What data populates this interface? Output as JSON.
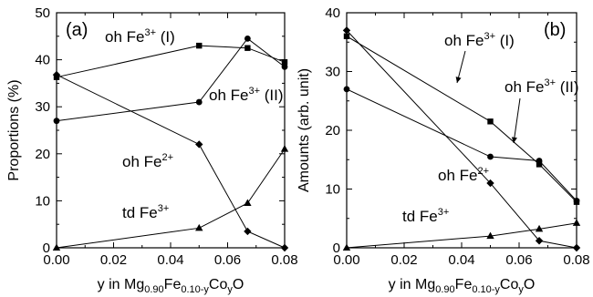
{
  "chart_data": [
    {
      "type": "line",
      "panel_label": "(a)",
      "xlabel": {
        "main": "y in Mg",
        "sub1": "0.90",
        "mid": "Fe",
        "sub2": "0.10-y",
        "mid2": "Co",
        "sub3": "y",
        "end": "O"
      },
      "ylabel": "Proportions  (%)",
      "xlim": [
        0.0,
        0.08
      ],
      "ylim": [
        0,
        50
      ],
      "xticks": [
        "0.00",
        "0.02",
        "0.04",
        "0.06",
        "0.08"
      ],
      "yticks": [
        "0",
        "10",
        "20",
        "30",
        "40",
        "50"
      ],
      "series": [
        {
          "name": "oh Fe3+ (I)",
          "marker": "square",
          "points": [
            [
              0.0,
              36.3
            ],
            [
              0.05,
              43.0
            ],
            [
              0.067,
              42.5
            ],
            [
              0.08,
              39.5
            ]
          ]
        },
        {
          "name": "oh Fe3+ (II)",
          "marker": "circle",
          "points": [
            [
              0.0,
              27.0
            ],
            [
              0.05,
              31.0
            ],
            [
              0.067,
              44.5
            ],
            [
              0.08,
              38.5
            ]
          ]
        },
        {
          "name": "oh Fe2+",
          "marker": "diamond",
          "points": [
            [
              0.0,
              36.8
            ],
            [
              0.05,
              22.0
            ],
            [
              0.067,
              3.5
            ],
            [
              0.08,
              0.0
            ]
          ]
        },
        {
          "name": "td Fe3+",
          "marker": "triangle",
          "points": [
            [
              0.0,
              0.0
            ],
            [
              0.05,
              4.2
            ],
            [
              0.067,
              9.5
            ],
            [
              0.08,
              21.0
            ]
          ]
        }
      ],
      "annotations": [
        {
          "main": "oh Fe",
          "sup": "3+",
          "tail": " (I)"
        },
        {
          "main": "oh Fe",
          "sup": "3+",
          "tail": " (II)"
        },
        {
          "main": "oh Fe",
          "sup": "2+",
          "tail": ""
        },
        {
          "main": "td Fe",
          "sup": "3+",
          "tail": ""
        }
      ]
    },
    {
      "type": "line",
      "panel_label": "(b)",
      "xlabel": {
        "main": "y in Mg",
        "sub1": "0.90",
        "mid": "Fe",
        "sub2": "0.10-y",
        "mid2": "Co",
        "sub3": "y",
        "end": "O"
      },
      "ylabel": "Amounts  (arb. unit)",
      "xlim": [
        0.0,
        0.08
      ],
      "ylim": [
        0,
        40
      ],
      "xticks": [
        "0.00",
        "0.02",
        "0.04",
        "0.06",
        "0.08"
      ],
      "yticks": [
        "0",
        "10",
        "20",
        "30",
        "40"
      ],
      "series": [
        {
          "name": "oh Fe3+ (I)",
          "marker": "square",
          "points": [
            [
              0.0,
              36.0
            ],
            [
              0.05,
              21.5
            ],
            [
              0.067,
              14.2
            ],
            [
              0.08,
              7.8
            ]
          ]
        },
        {
          "name": "oh Fe3+ (II)",
          "marker": "circle",
          "points": [
            [
              0.0,
              27.0
            ],
            [
              0.05,
              15.5
            ],
            [
              0.067,
              14.8
            ],
            [
              0.08,
              8.0
            ]
          ]
        },
        {
          "name": "oh Fe2+",
          "marker": "diamond",
          "points": [
            [
              0.0,
              37.0
            ],
            [
              0.05,
              11.0
            ],
            [
              0.067,
              1.2
            ],
            [
              0.08,
              0.0
            ]
          ]
        },
        {
          "name": "td Fe3+",
          "marker": "triangle",
          "points": [
            [
              0.0,
              0.0
            ],
            [
              0.05,
              2.0
            ],
            [
              0.067,
              3.2
            ],
            [
              0.08,
              4.2
            ]
          ]
        }
      ],
      "annotations": [
        {
          "main": "oh Fe",
          "sup": "3+",
          "tail": " (I)"
        },
        {
          "main": "oh Fe",
          "sup": "3+",
          "tail": " (II)"
        },
        {
          "main": "oh Fe",
          "sup": "2+",
          "tail": ""
        },
        {
          "main": "td Fe",
          "sup": "3+",
          "tail": ""
        }
      ]
    }
  ]
}
